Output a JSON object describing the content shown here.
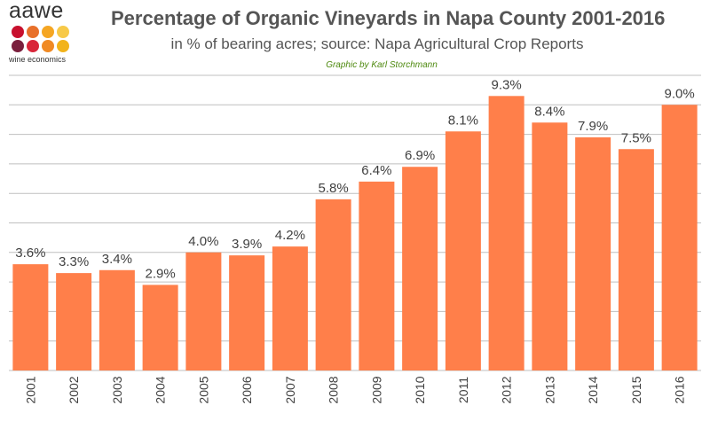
{
  "logo": {
    "word": "aawe",
    "sub": "wine economics",
    "dot_colors": [
      "#c8102e",
      "#e8702a",
      "#f5a623",
      "#f7c948",
      "#7a1f3d",
      "#d9263a",
      "#f08a24",
      "#f2b31b"
    ]
  },
  "chart_data": {
    "type": "bar",
    "title": "Percentage of Organic Vineyards in Napa County 2001-2016",
    "subtitle": "in % of bearing acres; source: Napa Agricultural Crop Reports",
    "credit": "Graphic by Karl Storchmann",
    "categories": [
      "2001",
      "2002",
      "2003",
      "2004",
      "2005",
      "2006",
      "2007",
      "2008",
      "2009",
      "2010",
      "2011",
      "2012",
      "2013",
      "2014",
      "2015",
      "2016"
    ],
    "values": [
      3.6,
      3.3,
      3.4,
      2.9,
      4.0,
      3.9,
      4.2,
      5.8,
      6.4,
      6.9,
      8.1,
      9.3,
      8.4,
      7.9,
      7.5,
      9.0
    ],
    "labels": [
      "3.6%",
      "3.3%",
      "3.4%",
      "2.9%",
      "4.0%",
      "3.9%",
      "4.2%",
      "5.8%",
      "6.4%",
      "6.9%",
      "8.1%",
      "9.3%",
      "8.4%",
      "7.9%",
      "7.5%",
      "9.0%"
    ],
    "xlabel": "",
    "ylabel": "",
    "ylim": [
      0,
      10
    ],
    "grid": true,
    "bar_color": "#ff7f4a",
    "grid_color": "#bfbfbf",
    "text_color": "#404040"
  }
}
